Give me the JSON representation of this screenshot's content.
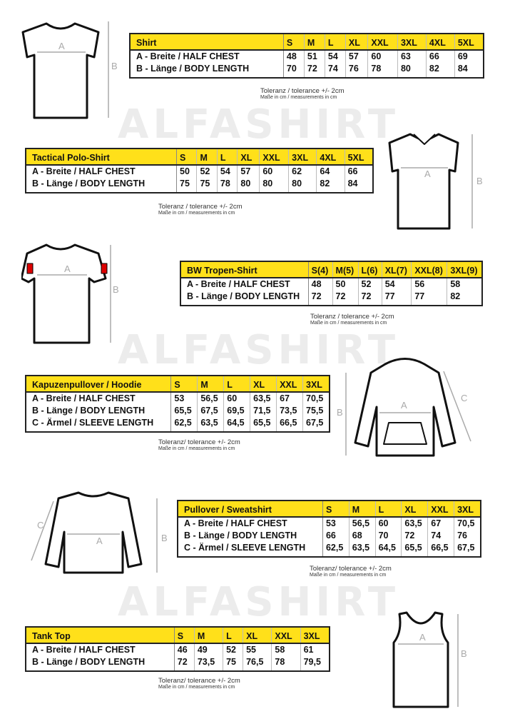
{
  "watermark": "ALFASHIRT",
  "diagram_labels": {
    "a": "A",
    "b": "B",
    "c": "C"
  },
  "tables": [
    {
      "title": "Shirt",
      "sizes": [
        "S",
        "M",
        "L",
        "XL",
        "XXL",
        "3XL",
        "4XL",
        "5XL"
      ],
      "rows": [
        {
          "label": "A -  Breite / HALF CHEST",
          "values": [
            "48",
            "51",
            "54",
            "57",
            "60",
            "63",
            "66",
            "69"
          ]
        },
        {
          "label": "B -  Länge / BODY LENGTH",
          "values": [
            "70",
            "72",
            "74",
            "76",
            "78",
            "80",
            "82",
            "84"
          ]
        }
      ],
      "tolerance": "Toleranz / tolerance +/- 2cm",
      "units": "Maße in cm / measurements in cm"
    },
    {
      "title": "Tactical Polo-Shirt",
      "sizes": [
        "S",
        "M",
        "L",
        "XL",
        "XXL",
        "3XL",
        "4XL",
        "5XL"
      ],
      "rows": [
        {
          "label": "A -  Breite / HALF CHEST",
          "values": [
            "50",
            "52",
            "54",
            "57",
            "60",
            "62",
            "64",
            "66"
          ]
        },
        {
          "label": "B -  Länge / BODY LENGTH",
          "values": [
            "75",
            "75",
            "78",
            "80",
            "80",
            "80",
            "82",
            "84"
          ]
        }
      ],
      "tolerance": "Toleranz / tolerance +/- 2cm",
      "units": "Maße in cm / measurements in cm"
    },
    {
      "title": "BW Tropen-Shirt",
      "sizes": [
        "S(4)",
        "M(5)",
        "L(6)",
        "XL(7)",
        "XXL(8)",
        "3XL(9)"
      ],
      "rows": [
        {
          "label": "A -  Breite / HALF CHEST",
          "values": [
            "48",
            "50",
            "52",
            "54",
            "56",
            "58"
          ]
        },
        {
          "label": "B -  Länge / BODY LENGTH",
          "values": [
            "72",
            "72",
            "72",
            "77",
            "77",
            "82"
          ]
        }
      ],
      "tolerance": "Toleranz / tolerance +/- 2cm",
      "units": "Maße in cm / measurements in cm"
    },
    {
      "title": "Kapuzenpullover / Hoodie",
      "sizes": [
        "S",
        "M",
        "L",
        "XL",
        "XXL",
        "3XL"
      ],
      "rows": [
        {
          "label": "A -  Breite / HALF CHEST",
          "values": [
            "53",
            "56,5",
            "60",
            "63,5",
            "67",
            "70,5"
          ]
        },
        {
          "label": "B -  Länge / BODY LENGTH",
          "values": [
            "65,5",
            "67,5",
            "69,5",
            "71,5",
            "73,5",
            "75,5"
          ]
        },
        {
          "label": "C -  Ärmel / SLEEVE LENGTH",
          "values": [
            "62,5",
            "63,5",
            "64,5",
            "65,5",
            "66,5",
            "67,5"
          ]
        }
      ],
      "tolerance": "Toleranz/ tolerance +/- 2cm",
      "units": "Maße in cm / measurements in cm"
    },
    {
      "title": "Pullover / Sweatshirt",
      "sizes": [
        "S",
        "M",
        "L",
        "XL",
        "XXL",
        "3XL"
      ],
      "rows": [
        {
          "label": "A -  Breite / HALF CHEST",
          "values": [
            "53",
            "56,5",
            "60",
            "63,5",
            "67",
            "70,5"
          ]
        },
        {
          "label": "B -  Länge / BODY LENGTH",
          "values": [
            "66",
            "68",
            "70",
            "72",
            "74",
            "76"
          ]
        },
        {
          "label": "C -  Ärmel / SLEEVE LENGTH",
          "values": [
            "62,5",
            "63,5",
            "64,5",
            "65,5",
            "66,5",
            "67,5"
          ]
        }
      ],
      "tolerance": "Toleranz/ tolerance +/- 2cm",
      "units": "Maße in cm / measurements in cm"
    },
    {
      "title": "Tank Top",
      "sizes": [
        "S",
        "M",
        "L",
        "XL",
        "XXL",
        "3XL"
      ],
      "rows": [
        {
          "label": "A -  Breite / HALF CHEST",
          "values": [
            "46",
            "49",
            "52",
            "55",
            "58",
            "61"
          ]
        },
        {
          "label": "B -  Länge / BODY LENGTH",
          "values": [
            "72",
            "73,5",
            "75",
            "76,5",
            "78",
            "79,5"
          ]
        }
      ],
      "tolerance": "Toleranz/ tolerance +/- 2cm",
      "units": "Maße in cm / measurements in cm"
    }
  ]
}
